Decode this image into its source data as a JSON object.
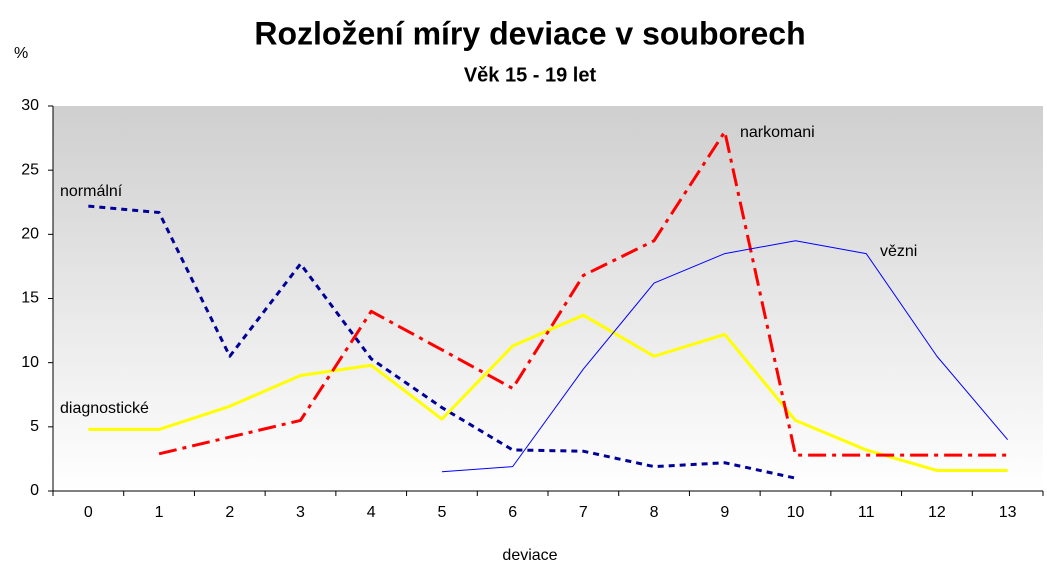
{
  "chart_data": {
    "type": "line",
    "title": "Rozložení míry deviace v souborech",
    "subtitle": "Věk 15 - 19 let",
    "y_label": "%",
    "x_label": "deviace",
    "categories": [
      "0",
      "1",
      "2",
      "3",
      "4",
      "5",
      "6",
      "7",
      "8",
      "9",
      "10",
      "11",
      "12",
      "13"
    ],
    "ylim": [
      0,
      30
    ],
    "yticks": [
      0,
      5,
      10,
      15,
      20,
      25,
      30
    ],
    "series": [
      {
        "name": "normální",
        "color": "#000099",
        "width": 3,
        "dash": "6,5",
        "values": [
          22.2,
          21.7,
          10.5,
          17.7,
          10.3,
          6.5,
          3.2,
          3.1,
          1.9,
          2.2,
          1.0,
          null,
          null,
          null
        ]
      },
      {
        "name": "diagnostické",
        "color": "#ffff00",
        "width": 3,
        "dash": "none",
        "values": [
          4.8,
          4.8,
          6.6,
          9.0,
          9.8,
          5.6,
          11.3,
          13.7,
          10.5,
          12.2,
          5.5,
          3.2,
          1.6,
          1.6
        ]
      },
      {
        "name": "narkomani",
        "color": "#ff0000",
        "width": 3,
        "dash": "18,6,4,6",
        "values": [
          null,
          2.9,
          4.2,
          5.5,
          14.0,
          11.0,
          8.0,
          16.8,
          19.5,
          28.0,
          2.8,
          2.8,
          2.8,
          2.8
        ]
      },
      {
        "name": "vězni",
        "color": "#0000ff",
        "width": 1,
        "dash": "none",
        "values": [
          null,
          null,
          null,
          null,
          null,
          1.5,
          1.9,
          9.5,
          16.2,
          18.5,
          19.5,
          18.5,
          10.5,
          4.0
        ]
      }
    ]
  }
}
